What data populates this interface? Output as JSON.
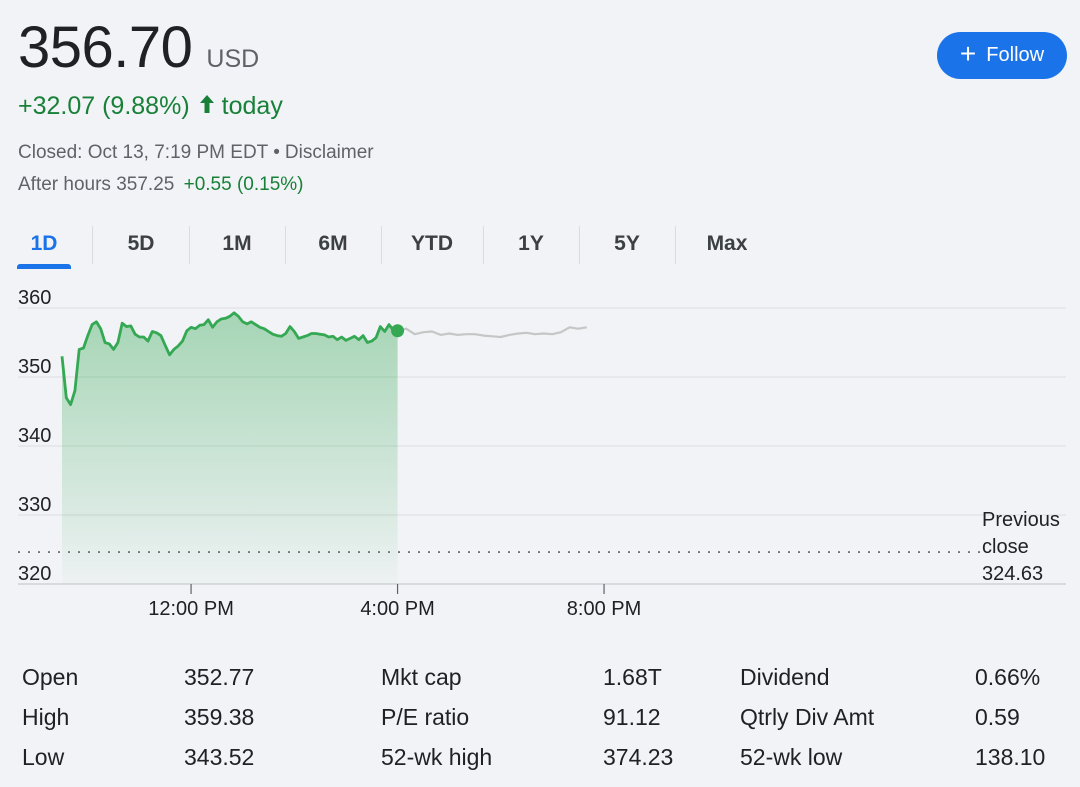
{
  "header": {
    "price": "356.70",
    "currency": "USD",
    "change": "+32.07 (9.88%)",
    "change_arrow": "🡑",
    "change_period": "today",
    "closed_text": "Closed: Oct 13, 7:19 PM EDT",
    "separator": "•",
    "disclaimer": "Disclaimer",
    "after_hours_label": "After hours 357.25",
    "after_hours_change": "+0.55 (0.15%)",
    "follow_icon": "+",
    "follow_label": "Follow"
  },
  "tabs": [
    "1D",
    "5D",
    "1M",
    "6M",
    "YTD",
    "1Y",
    "5Y",
    "Max"
  ],
  "active_tab": "1D",
  "colors": {
    "accent": "#1a73e8",
    "up": "#188038",
    "line": "#34a853",
    "after_hours_line": "#c4c7c5",
    "grid": "#dadce0"
  },
  "chart_data": {
    "type": "area",
    "ylim": [
      320,
      360
    ],
    "yticks": [
      "360",
      "350",
      "340",
      "330",
      "320"
    ],
    "xticks": [
      "12:00 PM",
      "4:00 PM",
      "8:00 PM"
    ],
    "previous_close": {
      "label": [
        "Previous",
        "close",
        "324.63"
      ],
      "value": 324.63
    },
    "grid": true,
    "series": [
      {
        "session": "regular",
        "x": [
          "9:30",
          "9:35",
          "9:40",
          "9:45",
          "9:50",
          "9:55",
          "10:00",
          "10:05",
          "10:10",
          "10:15",
          "10:20",
          "10:25",
          "10:30",
          "10:35",
          "10:40",
          "10:45",
          "10:50",
          "10:55",
          "11:00",
          "11:05",
          "11:10",
          "11:15",
          "11:20",
          "11:25",
          "11:30",
          "11:35",
          "11:40",
          "11:45",
          "11:50",
          "11:55",
          "12:00",
          "12:05",
          "12:10",
          "12:15",
          "12:20",
          "12:25",
          "12:30",
          "12:35",
          "12:40",
          "12:45",
          "12:50",
          "12:55",
          "13:00",
          "13:05",
          "13:10",
          "13:15",
          "13:20",
          "13:25",
          "13:30",
          "13:35",
          "13:40",
          "13:45",
          "13:50",
          "13:55",
          "14:00",
          "14:05",
          "14:10",
          "14:15",
          "14:20",
          "14:25",
          "14:30",
          "14:35",
          "14:40",
          "14:45",
          "14:50",
          "14:55",
          "15:00",
          "15:05",
          "15:10",
          "15:15",
          "15:20",
          "15:25",
          "15:30",
          "15:35",
          "15:40",
          "15:45",
          "15:50",
          "15:55",
          "16:00"
        ],
        "values": [
          353.0,
          347.0,
          346.0,
          348.0,
          354.0,
          354.2,
          356.0,
          357.6,
          358.0,
          357.0,
          355.0,
          354.8,
          354.0,
          355.0,
          357.8,
          357.3,
          357.4,
          356.2,
          355.8,
          355.8,
          355.2,
          356.6,
          356.4,
          356.0,
          354.6,
          353.2,
          354.0,
          354.5,
          355.2,
          356.7,
          357.2,
          357.0,
          357.5,
          357.6,
          358.3,
          357.2,
          358.0,
          358.4,
          358.5,
          358.8,
          359.3,
          358.8,
          358.0,
          357.7,
          358.0,
          357.6,
          357.2,
          357.0,
          356.6,
          356.2,
          356.0,
          355.9,
          356.3,
          357.3,
          356.6,
          355.6,
          355.8,
          356.0,
          356.3,
          356.3,
          356.2,
          356.1,
          355.8,
          355.9,
          355.4,
          355.8,
          355.3,
          355.6,
          355.9,
          355.4,
          356.0,
          355.0,
          355.2,
          355.7,
          357.3,
          356.6,
          357.6,
          356.8,
          356.7
        ],
        "color": "#34a853"
      },
      {
        "session": "after-hours",
        "x": [
          "16:00",
          "16:10",
          "16:20",
          "16:30",
          "16:40",
          "16:50",
          "17:00",
          "17:10",
          "17:20",
          "17:30",
          "17:40",
          "17:50",
          "18:00",
          "18:10",
          "18:20",
          "18:30",
          "18:40",
          "18:50",
          "19:00",
          "19:10",
          "19:20",
          "19:30",
          "19:40"
        ],
        "values": [
          356.7,
          357.0,
          356.2,
          356.5,
          356.6,
          356.1,
          356.3,
          356.1,
          356.2,
          356.2,
          356.0,
          355.9,
          355.8,
          356.1,
          356.3,
          356.4,
          356.2,
          356.3,
          356.2,
          356.5,
          357.2,
          357.0,
          357.2
        ],
        "color": "#c4c7c5"
      }
    ]
  },
  "stats": [
    {
      "label": "Open",
      "value": "352.77"
    },
    {
      "label": "High",
      "value": "359.38"
    },
    {
      "label": "Low",
      "value": "343.52"
    },
    {
      "label": "Mkt cap",
      "value": "1.68T"
    },
    {
      "label": "P/E ratio",
      "value": "91.12"
    },
    {
      "label": "52-wk high",
      "value": "374.23"
    },
    {
      "label": "Dividend",
      "value": "0.66%"
    },
    {
      "label": "Qtrly Div Amt",
      "value": "0.59"
    },
    {
      "label": "52-wk low",
      "value": "138.10"
    }
  ]
}
